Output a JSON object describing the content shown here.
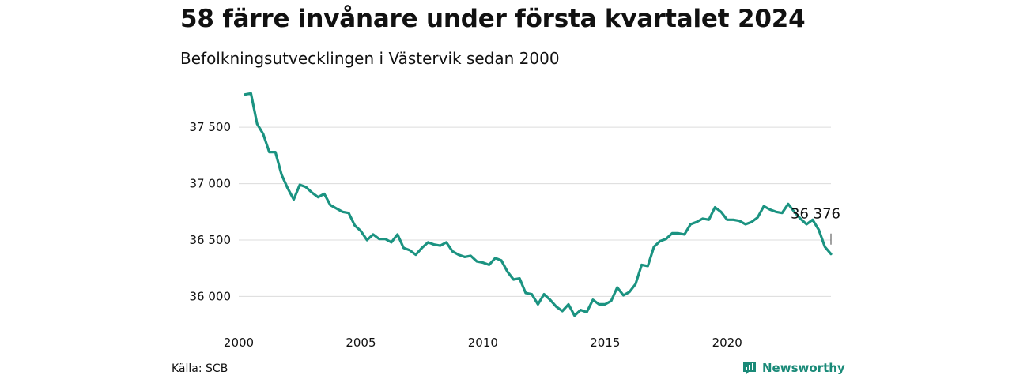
{
  "chart_data": {
    "type": "line",
    "title": "58 färre invånare under första kvartalet 2024",
    "subtitle": "Befolkningsutvecklingen i Västervik sedan 2000",
    "xlabel": "",
    "ylabel": "",
    "xlim": [
      2000,
      2024.25
    ],
    "ylim": [
      35800,
      37900
    ],
    "x_ticks": [
      {
        "value": 2000,
        "label": "2000"
      },
      {
        "value": 2005,
        "label": "2005"
      },
      {
        "value": 2010,
        "label": "2010"
      },
      {
        "value": 2015,
        "label": "2015"
      },
      {
        "value": 2020,
        "label": "2020"
      }
    ],
    "y_ticks": [
      {
        "value": 36000,
        "label": "36 000"
      },
      {
        "value": 36500,
        "label": "36 500"
      },
      {
        "value": 37000,
        "label": "37 000"
      },
      {
        "value": 37500,
        "label": "37 500"
      }
    ],
    "grid": "horizontal",
    "end_label": "36 376",
    "color": "#1b9381",
    "series": [
      {
        "x": [
          2000.25,
          2000.5,
          2000.75,
          2001.0,
          2001.25,
          2001.5,
          2001.75,
          2002.0,
          2002.25,
          2002.5,
          2002.75,
          2003.0,
          2003.25,
          2003.5,
          2003.75,
          2004.0,
          2004.25,
          2004.5,
          2004.75,
          2005.0,
          2005.25,
          2005.5,
          2005.75,
          2006.0,
          2006.25,
          2006.5,
          2006.75,
          2007.0,
          2007.25,
          2007.5,
          2007.75,
          2008.0,
          2008.25,
          2008.5,
          2008.75,
          2009.0,
          2009.25,
          2009.5,
          2009.75,
          2010.0,
          2010.25,
          2010.5,
          2010.75,
          2011.0,
          2011.25,
          2011.5,
          2011.75,
          2012.0,
          2012.25,
          2012.5,
          2012.75,
          2013.0,
          2013.25,
          2013.5,
          2013.75,
          2014.0,
          2014.25,
          2014.5,
          2014.75,
          2015.0,
          2015.25,
          2015.5,
          2015.75,
          2016.0,
          2016.25,
          2016.5,
          2016.75,
          2017.0,
          2017.25,
          2017.5,
          2017.75,
          2018.0,
          2018.25,
          2018.5,
          2018.75,
          2019.0,
          2019.25,
          2019.5,
          2019.75,
          2020.0,
          2020.25,
          2020.5,
          2020.75,
          2021.0,
          2021.25,
          2021.5,
          2021.75,
          2022.0,
          2022.25,
          2022.5,
          2022.75,
          2023.0,
          2023.25,
          2023.5,
          2023.75,
          2024.0,
          2024.25
        ],
        "values": [
          37790,
          37800,
          37530,
          37440,
          37280,
          37280,
          37080,
          36960,
          36860,
          36990,
          36970,
          36920,
          36880,
          36910,
          36810,
          36780,
          36750,
          36740,
          36630,
          36580,
          36500,
          36550,
          36510,
          36510,
          36480,
          36550,
          36430,
          36410,
          36370,
          36430,
          36480,
          36460,
          36450,
          36480,
          36400,
          36370,
          36350,
          36360,
          36310,
          36300,
          36280,
          36340,
          36320,
          36220,
          36150,
          36160,
          36030,
          36020,
          35930,
          36020,
          35970,
          35910,
          35870,
          35930,
          35830,
          35880,
          35860,
          35970,
          35930,
          35930,
          35960,
          36080,
          36010,
          36040,
          36110,
          36280,
          36270,
          36440,
          36490,
          36510,
          36560,
          36560,
          36550,
          36640,
          36660,
          36690,
          36680,
          36790,
          36750,
          36680,
          36680,
          36670,
          36640,
          36660,
          36700,
          36800,
          36770,
          36750,
          36740,
          36820,
          36750,
          36690,
          36640,
          36680,
          36590,
          36440,
          36376
        ]
      }
    ]
  },
  "footer": {
    "source": "Källa: SCB",
    "brand": "Newsworthy"
  }
}
